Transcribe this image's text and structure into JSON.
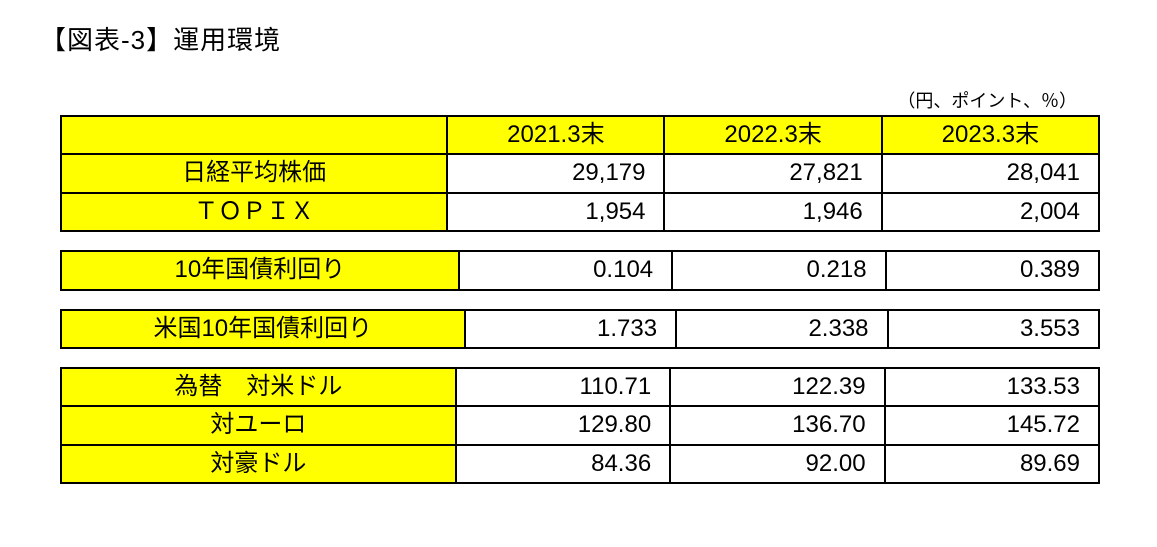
{
  "title": "【図表-3】運用環境",
  "unit_note": "（円、ポイント、％）",
  "columns": [
    "2021.3末",
    "2022.3末",
    "2023.3末"
  ],
  "groups": [
    {
      "show_header": true,
      "blank_first_header": true,
      "rows": [
        {
          "label": "日経平均株価",
          "values": [
            "29,179",
            "27,821",
            "28,041"
          ]
        },
        {
          "label": "ＴＯＰＩＸ",
          "values": [
            "1,954",
            "1,946",
            "2,004"
          ]
        }
      ]
    },
    {
      "show_header": false,
      "rows": [
        {
          "label": "10年国債利回り",
          "values": [
            "0.104",
            "0.218",
            "0.389"
          ]
        }
      ]
    },
    {
      "show_header": false,
      "rows": [
        {
          "label": "米国10年国債利回り",
          "values": [
            "1.733",
            "2.338",
            "3.553"
          ]
        }
      ]
    },
    {
      "show_header": false,
      "rows": [
        {
          "label": "為替　対米ドル",
          "values": [
            "110.71",
            "122.39",
            "133.53"
          ]
        },
        {
          "label": "対ユーロ",
          "values": [
            "129.80",
            "136.70",
            "145.72"
          ]
        },
        {
          "label": "対豪ドル",
          "values": [
            "84.36",
            "92.00",
            "89.69"
          ]
        }
      ]
    }
  ],
  "style": {
    "highlight_color": "#ffff00",
    "border_color": "#000000",
    "background_color": "#ffffff",
    "title_fontsize": 26,
    "cell_fontsize": 24,
    "unit_fontsize": 18,
    "col_widths": {
      "label": 400,
      "value": 200
    }
  }
}
